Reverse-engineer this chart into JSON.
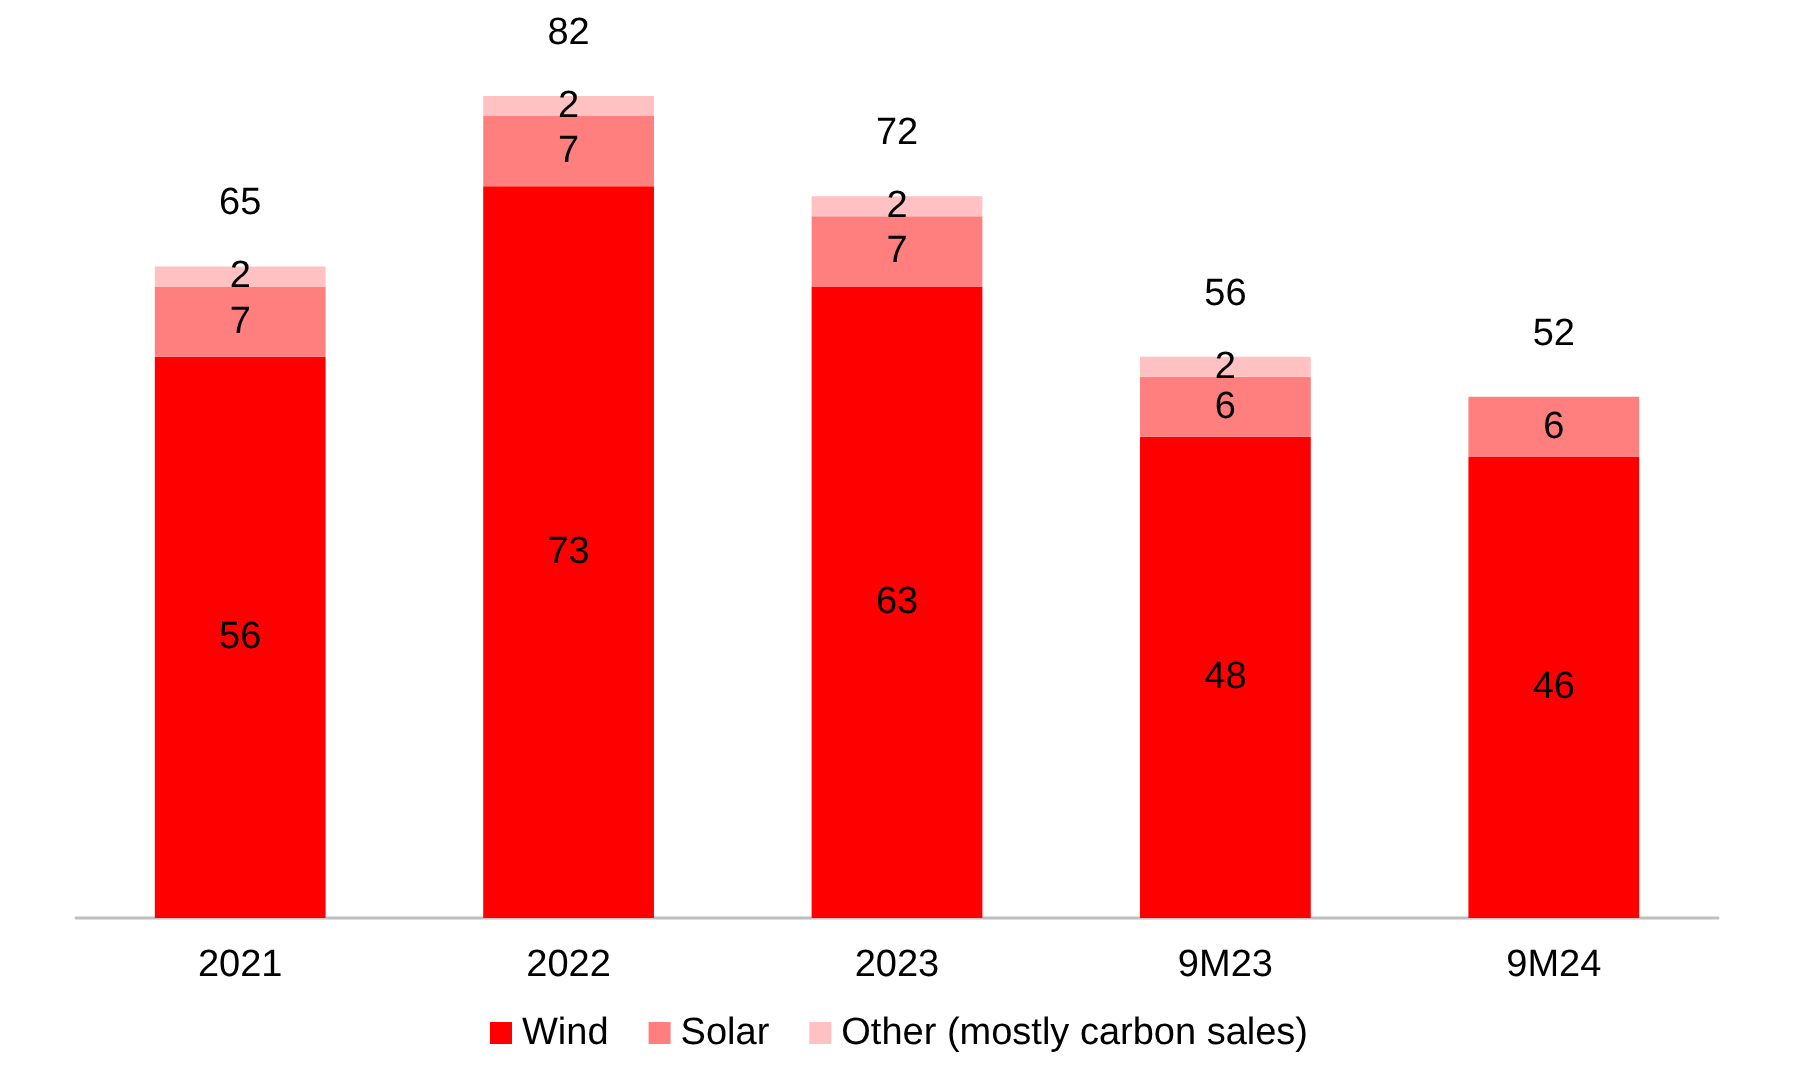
{
  "chart_data": {
    "type": "bar",
    "stacked": true,
    "categories": [
      "2021",
      "2022",
      "2023",
      "9M23",
      "9M24"
    ],
    "series": [
      {
        "name": "Wind",
        "color": "#ff0000",
        "values": [
          56,
          73,
          63,
          48,
          46
        ]
      },
      {
        "name": "Solar",
        "color": "#ff7f7f",
        "values": [
          7,
          7,
          7,
          6,
          6
        ]
      },
      {
        "name": "Other (mostly carbon sales)",
        "color": "#ffc1c1",
        "values": [
          2,
          2,
          2,
          2,
          null
        ]
      }
    ],
    "data_labels": true,
    "totals": [
      "65",
      "82",
      "72",
      "56",
      "52"
    ],
    "legend": "bottom"
  }
}
